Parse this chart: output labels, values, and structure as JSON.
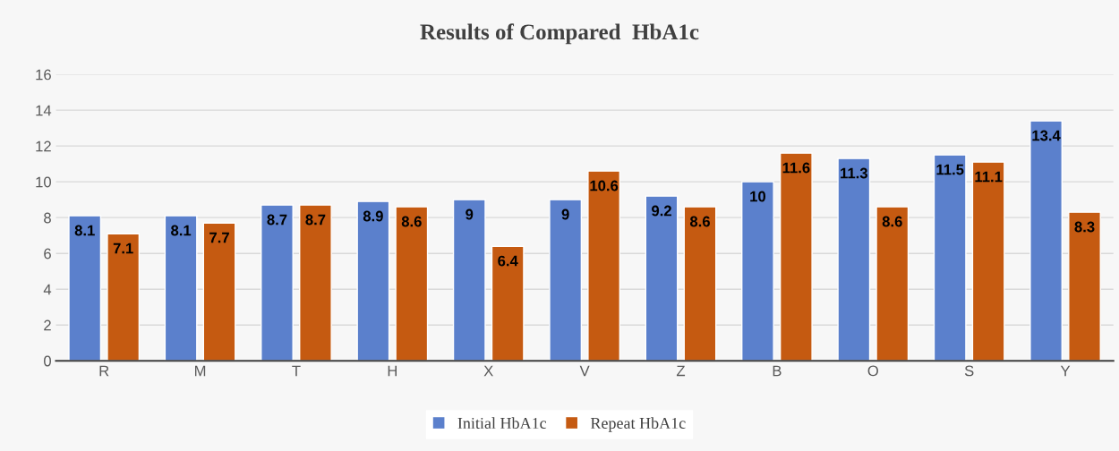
{
  "chart_data": {
    "type": "bar",
    "title": "Results of Compared  HbA1c",
    "categories": [
      "R",
      "M",
      "T",
      "H",
      "X",
      "V",
      "Z",
      "B",
      "O",
      "S",
      "Y"
    ],
    "series": [
      {
        "name": "Initial HbA1c",
        "color": "#5b80cc",
        "values": [
          8.1,
          8.1,
          8.7,
          8.9,
          9,
          9,
          9.2,
          10,
          11.3,
          11.5,
          13.4
        ]
      },
      {
        "name": "Repeat HbA1c",
        "color": "#c55a11",
        "values": [
          7.1,
          7.7,
          8.7,
          8.6,
          6.4,
          10.6,
          8.6,
          11.6,
          8.6,
          11.1,
          8.3
        ]
      }
    ],
    "ylim": [
      0,
      16
    ],
    "yticks": [
      0,
      2,
      4,
      6,
      8,
      10,
      12,
      14,
      16
    ],
    "grid": "y",
    "legend": "bottom",
    "data_labels": true
  }
}
